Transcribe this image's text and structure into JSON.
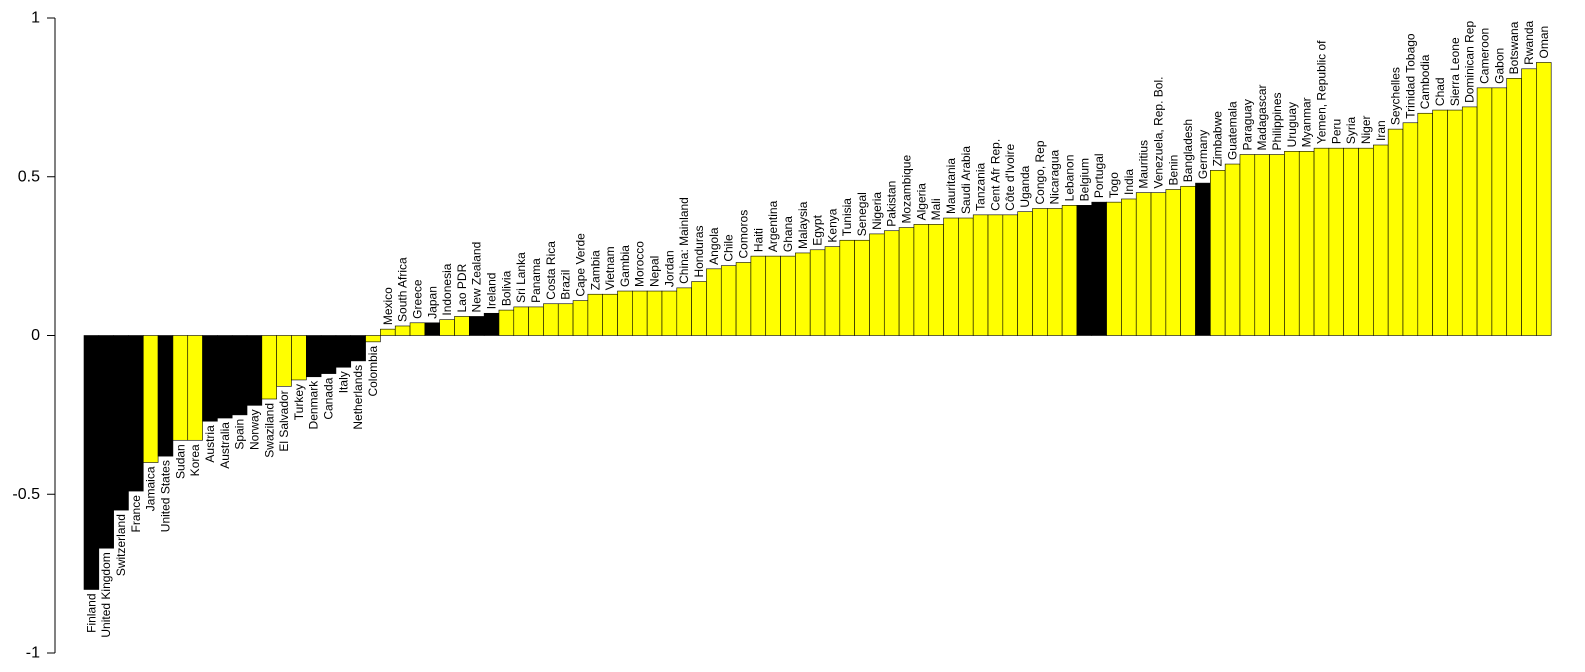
{
  "chart_data": {
    "type": "bar",
    "title": "",
    "xlabel": "",
    "ylabel": "",
    "ylim": [
      -1,
      1
    ],
    "yticks": [
      "-1",
      "-0.5",
      "0",
      "0.5",
      "1"
    ],
    "grid": false,
    "colors": {
      "yellow": "#ffff00",
      "black": "#000000",
      "outline": "#000000"
    },
    "categories": [
      "Finland",
      "United Kingdom",
      "Switzerland",
      "France",
      "Jamaica",
      "United States",
      "Sudan",
      "Korea",
      "Austria",
      "Australia",
      "Spain",
      "Norway",
      "Swaziland",
      "El Salvador",
      "Turkey",
      "Denmark",
      "Canada",
      "Italy",
      "Netherlands",
      "Colombia",
      "Mexico",
      "South Africa",
      "Greece",
      "Japan",
      "Indonesia",
      "Lao PDR",
      "New Zealand",
      "Ireland",
      "Bolivia",
      "Sri Lanka",
      "Panama",
      "Costa Rica",
      "Brazil",
      "Cape Verde",
      "Zambia",
      "Vietnam",
      "Gambia",
      "Morocco",
      "Nepal",
      "Jordan",
      "China: Mainland",
      "Honduras",
      "Angola",
      "Chile",
      "Comoros",
      "Haiti",
      "Argentina",
      "Ghana",
      "Malaysia",
      "Egypt",
      "Kenya",
      "Tunisia",
      "Senegal",
      "Nigeria",
      "Pakistan",
      "Mozambique",
      "Algeria",
      "Mali",
      "Mauritania",
      "Saudi Arabia",
      "Tanzania",
      "Cent Afr Rep.",
      "Côte d'Ivoire",
      "Uganda",
      "Congo, Rep",
      "Nicaragua",
      "Lebanon",
      "Belgium",
      "Portugal",
      "Togo",
      "India",
      "Mauritius",
      "Venezuela, Rep. Bol.",
      "Benin",
      "Bangladesh",
      "Germany",
      "Zimbabwe",
      "Guatemala",
      "Paraguay",
      "Madagascar",
      "Philippines",
      "Uruguay",
      "Myanmar",
      "Yemen, Republic of",
      "Peru",
      "Syria",
      "Niger",
      "Iran",
      "Seychelles",
      "Trinidad Tobago",
      "Cambodia",
      "Chad",
      "Sierra Leone",
      "Dominican Rep",
      "Cameroon",
      "Gabon",
      "Botswana",
      "Rwanda",
      "Oman"
    ],
    "values": [
      -0.8,
      -0.67,
      -0.55,
      -0.49,
      -0.4,
      -0.38,
      -0.33,
      -0.33,
      -0.27,
      -0.26,
      -0.25,
      -0.22,
      -0.2,
      -0.16,
      -0.14,
      -0.13,
      -0.12,
      -0.1,
      -0.08,
      -0.02,
      0.02,
      0.03,
      0.04,
      0.04,
      0.05,
      0.06,
      0.06,
      0.07,
      0.08,
      0.09,
      0.09,
      0.1,
      0.1,
      0.11,
      0.13,
      0.13,
      0.14,
      0.14,
      0.14,
      0.14,
      0.15,
      0.17,
      0.21,
      0.22,
      0.23,
      0.25,
      0.25,
      0.25,
      0.26,
      0.27,
      0.28,
      0.3,
      0.3,
      0.32,
      0.33,
      0.34,
      0.35,
      0.35,
      0.37,
      0.37,
      0.38,
      0.38,
      0.38,
      0.39,
      0.4,
      0.4,
      0.41,
      0.41,
      0.42,
      0.42,
      0.43,
      0.45,
      0.45,
      0.46,
      0.47,
      0.48,
      0.52,
      0.54,
      0.57,
      0.57,
      0.57,
      0.58,
      0.58,
      0.59,
      0.59,
      0.59,
      0.59,
      0.6,
      0.65,
      0.67,
      0.7,
      0.71,
      0.71,
      0.72,
      0.78,
      0.78,
      0.81,
      0.84,
      0.86
    ],
    "bar_colors": [
      "black",
      "black",
      "black",
      "black",
      "yellow",
      "black",
      "yellow",
      "yellow",
      "black",
      "black",
      "black",
      "black",
      "yellow",
      "yellow",
      "yellow",
      "black",
      "black",
      "black",
      "black",
      "yellow",
      "yellow",
      "yellow",
      "yellow",
      "black",
      "yellow",
      "yellow",
      "black",
      "black",
      "yellow",
      "yellow",
      "yellow",
      "yellow",
      "yellow",
      "yellow",
      "yellow",
      "yellow",
      "yellow",
      "yellow",
      "yellow",
      "yellow",
      "yellow",
      "yellow",
      "yellow",
      "yellow",
      "yellow",
      "yellow",
      "yellow",
      "yellow",
      "yellow",
      "yellow",
      "yellow",
      "yellow",
      "yellow",
      "yellow",
      "yellow",
      "yellow",
      "yellow",
      "yellow",
      "yellow",
      "yellow",
      "yellow",
      "yellow",
      "yellow",
      "yellow",
      "yellow",
      "yellow",
      "yellow",
      "black",
      "black",
      "yellow",
      "yellow",
      "yellow",
      "yellow",
      "yellow",
      "yellow",
      "black",
      "yellow",
      "yellow",
      "yellow",
      "yellow",
      "yellow",
      "yellow",
      "yellow",
      "yellow",
      "yellow",
      "yellow",
      "yellow",
      "yellow",
      "yellow",
      "yellow",
      "yellow",
      "yellow",
      "yellow",
      "yellow",
      "yellow",
      "yellow",
      "yellow",
      "yellow",
      "yellow"
    ]
  }
}
